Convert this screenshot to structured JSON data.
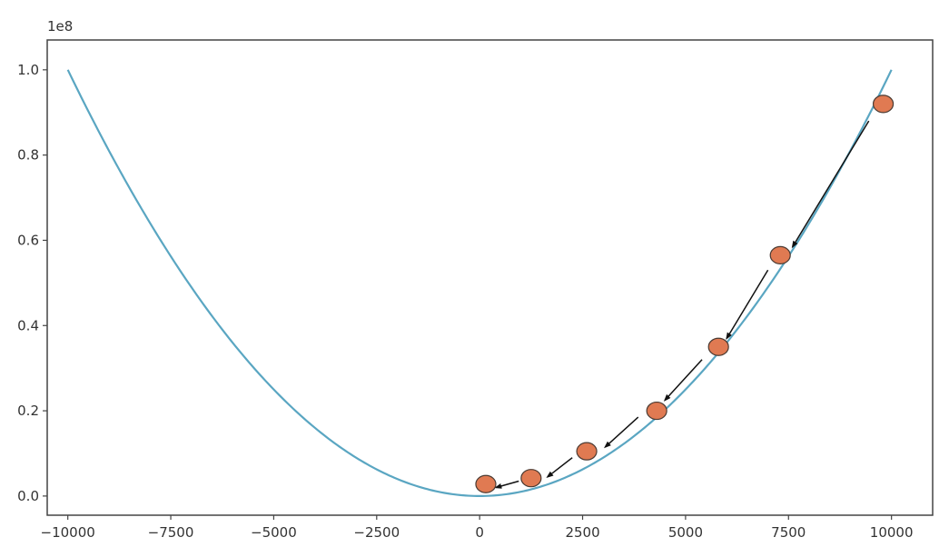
{
  "chart_data": {
    "type": "line",
    "title": "",
    "xlabel": "",
    "ylabel": "",
    "y_offset_label": "1e8",
    "xlim": [
      -10500,
      11000
    ],
    "ylim": [
      -0.045,
      1.07
    ],
    "x_ticks": [
      -10000,
      -7500,
      -5000,
      -2500,
      0,
      2500,
      5000,
      7500,
      10000
    ],
    "x_tick_labels": [
      "−10000",
      "−7500",
      "−5000",
      "−2500",
      "0",
      "2500",
      "5000",
      "7500",
      "10000"
    ],
    "y_ticks": [
      0.0,
      0.2,
      0.4,
      0.6,
      0.8,
      1.0
    ],
    "y_tick_labels": [
      "0.0",
      "0.2",
      "0.4",
      "0.6",
      "0.8",
      "1.0"
    ],
    "grid": false,
    "legend": "none",
    "curve": {
      "function": "y = x^2",
      "x_range": [
        -10000,
        10000
      ],
      "color": "#5aa6c2"
    },
    "points": {
      "x": [
        9800,
        7300,
        5800,
        4300,
        2600,
        1250,
        150
      ],
      "y": [
        0.92,
        0.565,
        0.35,
        0.2,
        0.105,
        0.042,
        0.028
      ],
      "fill": "#e07a52",
      "stroke": "#4a3a32"
    },
    "arrows": {
      "color": "#111111",
      "segments": [
        {
          "from": [
            9450,
            0.88
          ],
          "to": [
            7600,
            0.585
          ]
        },
        {
          "from": [
            7000,
            0.53
          ],
          "to": [
            6000,
            0.37
          ]
        },
        {
          "from": [
            5400,
            0.32
          ],
          "to": [
            4500,
            0.225
          ]
        },
        {
          "from": [
            3850,
            0.185
          ],
          "to": [
            3050,
            0.115
          ]
        },
        {
          "from": [
            2250,
            0.09
          ],
          "to": [
            1650,
            0.045
          ]
        },
        {
          "from": [
            950,
            0.035
          ],
          "to": [
            400,
            0.02
          ]
        }
      ]
    }
  }
}
